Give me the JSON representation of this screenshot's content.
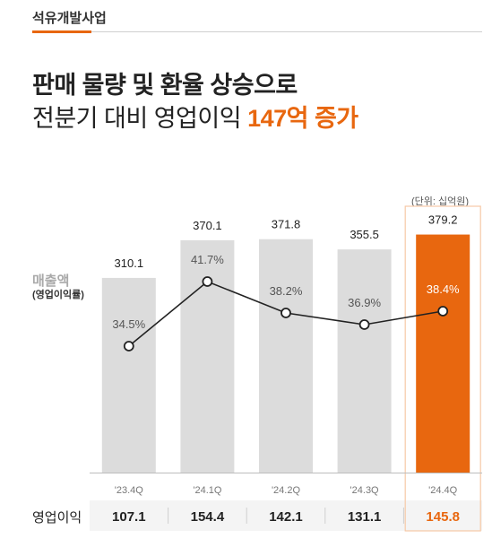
{
  "header": {
    "section": "석유개발사업",
    "headline_line1": "판매 물량 및 환율 상승으로",
    "headline_line2_plain": "전분기 대비 영업이익 ",
    "headline_line2_highlight": "147억 증가"
  },
  "chart_data": {
    "type": "bar",
    "unit_note": "(단위: 십억원)",
    "y_label": "매출액",
    "y_sub_label": "(영업이익률)",
    "categories": [
      "'23.4Q",
      "'24.1Q",
      "'24.2Q",
      "'24.3Q",
      "'24.4Q"
    ],
    "series": [
      {
        "name": "매출액",
        "type": "bar",
        "values": [
          310.1,
          370.1,
          371.8,
          355.5,
          379.2
        ],
        "labels": [
          "310.1",
          "370.1",
          "371.8",
          "355.5",
          "379.2"
        ]
      },
      {
        "name": "영업이익률",
        "type": "line",
        "values": [
          34.5,
          41.7,
          38.2,
          36.9,
          38.4
        ],
        "labels": [
          "34.5%",
          "41.7%",
          "38.2%",
          "36.9%",
          "38.4%"
        ]
      }
    ],
    "footer_row": {
      "label": "영업이익",
      "values": [
        "107.1",
        "154.4",
        "142.1",
        "131.1",
        "145.8"
      ]
    },
    "highlight_index": 4,
    "colors": {
      "bar": "#dcdcdc",
      "highlight": "#e8670f",
      "line": "#222222",
      "pct_label": "#555555",
      "highlight_box": "#f6c9a6"
    }
  }
}
